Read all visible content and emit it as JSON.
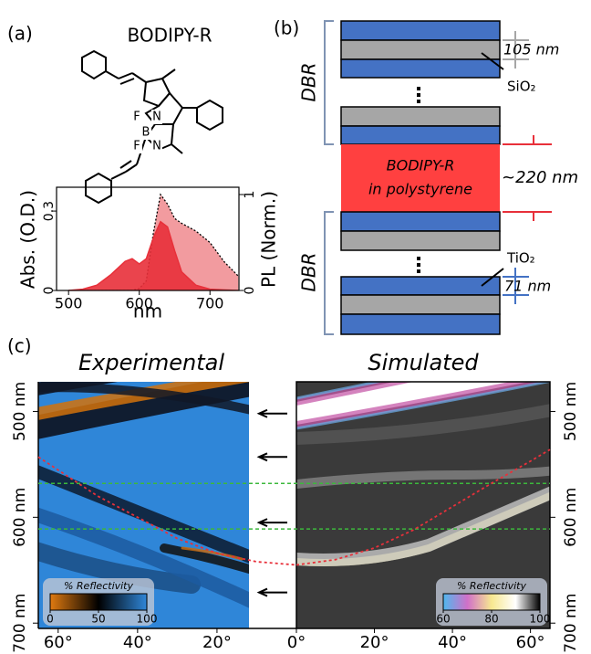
{
  "panel_labels": [
    "(a)",
    "(b)",
    "(c)"
  ],
  "molecule": {
    "name": "BODIPY-R",
    "atoms": [
      "F",
      "F",
      "B",
      "N",
      "N"
    ]
  },
  "diagram": {
    "dbr_labels": [
      "DBR",
      "DBR"
    ],
    "sio2_thickness": "105 nm",
    "sio2": "SiO₂",
    "layer_lines": [
      "BODIPY-R",
      "in polystyrene"
    ],
    "layer_thickness": "~220 nm",
    "tio2": "TiO₂",
    "tio2_thickness": "71 nm"
  },
  "chart_data": [
    {
      "type": "line",
      "x_label": "nm",
      "y_label": "Abs. (O.D.)",
      "y2_label": "PL (Norm.)",
      "x": [
        500,
        520,
        540,
        560,
        580,
        590,
        600,
        610,
        620,
        630,
        640,
        650,
        660,
        680,
        700,
        720,
        740
      ],
      "series": [
        {
          "color": "#e8303a",
          "fill": true,
          "values": [
            0,
            0.005,
            0.02,
            0.06,
            0.11,
            0.12,
            0.1,
            0.12,
            0.2,
            0.26,
            0.24,
            0.15,
            0.07,
            0.02,
            0.005,
            0.002,
            0
          ]
        },
        {
          "color": "#f08a8e",
          "fill": true,
          "dotted": true,
          "axis": "y2",
          "values": [
            0,
            0,
            0,
            0,
            0,
            0,
            0.02,
            0.1,
            0.6,
            1.0,
            0.9,
            0.75,
            0.7,
            0.62,
            0.5,
            0.3,
            0.15
          ]
        }
      ],
      "xlim": [
        483,
        741
      ],
      "xticks": [
        500,
        600,
        700
      ],
      "ylim": [
        0,
        0.39
      ],
      "yticks": [
        0,
        0.3
      ],
      "y2lim": [
        0,
        1.076
      ],
      "y2ticks": [
        0,
        1
      ]
    },
    {
      "type": "heatmap",
      "ylim": [
        705,
        472
      ],
      "yticks": [
        {
          "value": 500,
          "label": "500 nm"
        },
        {
          "value": 600,
          "label": "600 nm"
        },
        {
          "value": 700,
          "label": "700 nm"
        }
      ],
      "hlines": [
        568,
        611
      ],
      "hline_color": "#3cb83c",
      "arrows": [
        502,
        543,
        605,
        671
      ],
      "panels": [
        {
          "title": "Experimental",
          "xlim": [
            65,
            0
          ],
          "xticks": [
            {
              "value": 60,
              "label": "60°"
            },
            {
              "value": 40,
              "label": "40°"
            },
            {
              "value": 20,
              "label": "20°"
            }
          ],
          "curve": {
            "x": [
              65,
              50,
              40,
              30,
              20,
              10,
              0
            ],
            "values": [
              543,
              580,
              600,
              620,
              634,
              642,
              645
            ],
            "color": "#e8303a"
          },
          "colorbar": {
            "label": "% Reflectivity",
            "ticks": [
              0,
              50,
              100
            ],
            "colors": [
              "#e07a10",
              "#000000",
              "#2f86d8"
            ]
          }
        },
        {
          "title": "Simulated",
          "xlim": [
            0,
            65
          ],
          "xticks": [
            {
              "value": 0,
              "label": "0°"
            },
            {
              "value": 20,
              "label": "20°"
            },
            {
              "value": 40,
              "label": "40°"
            },
            {
              "value": 60,
              "label": "60°"
            }
          ],
          "curve": {
            "x": [
              0,
              10,
              20,
              30,
              40,
              50,
              60,
              65
            ],
            "values": [
              645,
              640,
              629,
              612,
              590,
              568,
              547,
              536
            ],
            "color": "#e8303a"
          },
          "colorbar": {
            "label": "% Reflectivity",
            "ticks": [
              60,
              80,
              100
            ],
            "colors": [
              "#4fb8ef",
              "#d070c8",
              "#f7e890",
              "#ffffff",
              "#000000"
            ]
          }
        }
      ]
    }
  ]
}
